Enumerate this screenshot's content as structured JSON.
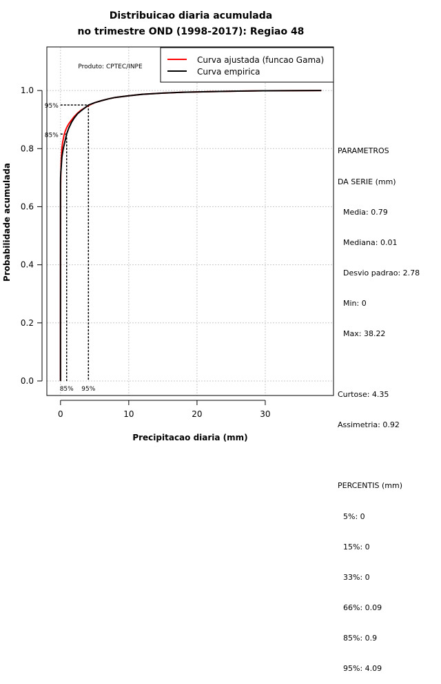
{
  "chart_data": {
    "type": "line",
    "title_line1": "Distribuicao diaria acumulada",
    "title_line2": "no trimestre OND (1998-2017): Regiao 48",
    "xlabel": "Precipitacao diaria (mm)",
    "ylabel": "Probabilidade acumulada",
    "xlim": [
      -2,
      40
    ],
    "ylim": [
      -0.05,
      1.15
    ],
    "x_ticks": [
      0,
      10,
      20,
      30
    ],
    "y_ticks": [
      0.0,
      0.2,
      0.4,
      0.6,
      0.8,
      1.0
    ],
    "grid": true,
    "product_label": "Produto: CPTEC/INPE",
    "legend": {
      "position": "top-right",
      "entries": [
        {
          "label": "Curva ajustada (funcao Gama)",
          "color": "#ff0000"
        },
        {
          "label": "Curva empirica",
          "color": "#000000"
        }
      ]
    },
    "series": [
      {
        "name": "Curva ajustada (funcao Gama)",
        "color": "#ff0000",
        "x": [
          0.0,
          0.0,
          0.005,
          0.02,
          0.05,
          0.1,
          0.2,
          0.3,
          0.5,
          0.7,
          0.9,
          1.2,
          1.5,
          2.0,
          2.5,
          3.0,
          4.09,
          5.0,
          6.0,
          7.0,
          8.0,
          10.0,
          12.0,
          15.0,
          18.0,
          22.0,
          26.0,
          30.0,
          35.0,
          38.22
        ],
        "y": [
          0.0,
          0.23,
          0.59,
          0.67,
          0.72,
          0.76,
          0.8,
          0.82,
          0.845,
          0.86,
          0.872,
          0.885,
          0.895,
          0.91,
          0.922,
          0.932,
          0.948,
          0.958,
          0.965,
          0.971,
          0.976,
          0.982,
          0.987,
          0.991,
          0.994,
          0.996,
          0.998,
          0.999,
          0.9995,
          1.0
        ]
      },
      {
        "name": "Curva empirica",
        "color": "#000000",
        "x": [
          0.0,
          0.0,
          0.01,
          0.05,
          0.09,
          0.2,
          0.4,
          0.6,
          0.9,
          1.2,
          1.6,
          2.0,
          2.5,
          3.0,
          4.09,
          5.0,
          6.0,
          7.0,
          8.0,
          10.0,
          12.0,
          15.0,
          18.0,
          22.0,
          26.0,
          30.0,
          38.22
        ],
        "y": [
          0.0,
          0.68,
          0.7,
          0.72,
          0.73,
          0.77,
          0.8,
          0.82,
          0.85,
          0.87,
          0.89,
          0.905,
          0.92,
          0.93,
          0.95,
          0.958,
          0.965,
          0.971,
          0.976,
          0.982,
          0.987,
          0.991,
          0.994,
          0.996,
          0.998,
          0.999,
          1.0
        ]
      }
    ],
    "percentile_markers": [
      {
        "label": "85%",
        "x": 0.9,
        "y": 0.85
      },
      {
        "label": "95%",
        "x": 4.09,
        "y": 0.95
      }
    ]
  },
  "stats": {
    "header1": "PARAMETROS",
    "header2": "DA SERIE (mm)",
    "media": "Media: 0.79",
    "mediana": "Mediana: 0.01",
    "desvio": "Desvio padrao: 2.78",
    "min": "Min: 0",
    "max": "Max: 38.22",
    "curtose": "Curtose: 4.35",
    "assimetria": "Assimetria: 0.92",
    "percentis_header": "PERCENTIS (mm)",
    "p5": "5%: 0",
    "p15": "15%: 0",
    "p33": "33%: 0",
    "p66": "66%: 0.09",
    "p85": "85%: 0.9",
    "p95": "95%: 4.09"
  }
}
